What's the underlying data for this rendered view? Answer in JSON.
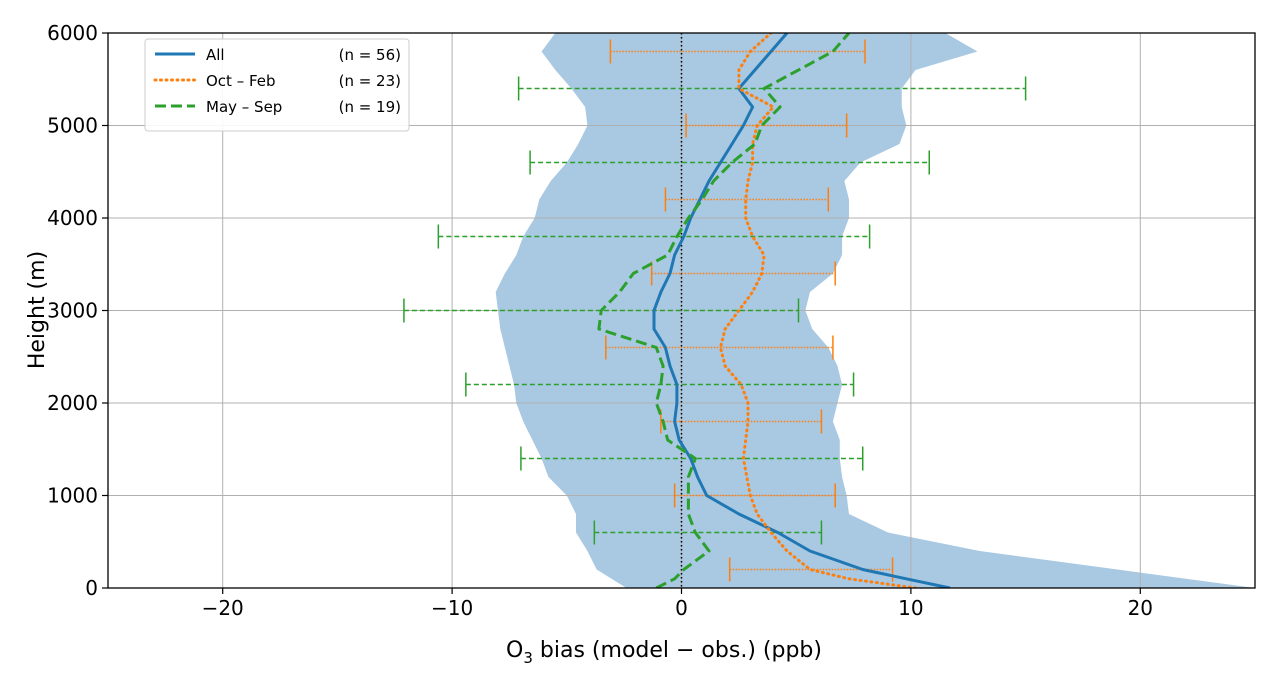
{
  "chart_data": {
    "type": "line",
    "xlabel": {
      "prefix": "O",
      "subscript": "3",
      "suffix": " bias (model − obs.) (ppb)"
    },
    "ylabel": "Height (m)",
    "xlim": [
      -25,
      25
    ],
    "ylim": [
      0,
      6000
    ],
    "x_ticks": [
      -20,
      -10,
      0,
      10,
      20
    ],
    "x_tick_labels": [
      "−20",
      "−10",
      "0",
      "10",
      "20"
    ],
    "y_ticks": [
      0,
      1000,
      2000,
      3000,
      4000,
      5000,
      6000
    ],
    "y_tick_labels": [
      "0",
      "1000",
      "2000",
      "3000",
      "4000",
      "5000",
      "6000"
    ],
    "grid": true,
    "zero_reference_line": {
      "x": 0,
      "style": "dotted",
      "color": "#000000"
    },
    "legend": {
      "position": "upper-left",
      "entries": [
        {
          "label": "All",
          "count": "(n = 56)"
        },
        {
          "label": "Oct – Feb",
          "count": "(n = 23)"
        },
        {
          "label": "May – Sep",
          "count": "(n = 19)"
        }
      ]
    },
    "shaded_band": {
      "series": "All",
      "color": "#a9c8e2",
      "upper": [
        [
          0,
          25
        ],
        [
          200,
          19
        ],
        [
          400,
          13
        ],
        [
          600,
          9
        ],
        [
          800,
          7.3
        ],
        [
          1000,
          7.2
        ],
        [
          1200,
          7
        ],
        [
          1400,
          6.9
        ],
        [
          1600,
          6.9
        ],
        [
          1800,
          6.6
        ],
        [
          2000,
          6.8
        ],
        [
          2200,
          7
        ],
        [
          2400,
          6.8
        ],
        [
          2600,
          6.4
        ],
        [
          2800,
          5.7
        ],
        [
          3000,
          5.4
        ],
        [
          3200,
          5.6
        ],
        [
          3400,
          6.6
        ],
        [
          3600,
          7
        ],
        [
          3800,
          7
        ],
        [
          4000,
          7.3
        ],
        [
          4200,
          7.3
        ],
        [
          4400,
          7.1
        ],
        [
          4600,
          7.8
        ],
        [
          4800,
          9.5
        ],
        [
          5000,
          9.8
        ],
        [
          5200,
          9.6
        ],
        [
          5400,
          9.6
        ],
        [
          5600,
          10.2
        ],
        [
          5800,
          12.9
        ],
        [
          6000,
          11.5
        ]
      ],
      "lower": [
        [
          0,
          -2.4
        ],
        [
          200,
          -3.7
        ],
        [
          400,
          -4.1
        ],
        [
          600,
          -4.6
        ],
        [
          800,
          -4.6
        ],
        [
          1000,
          -5
        ],
        [
          1200,
          -5.8
        ],
        [
          1400,
          -6.1
        ],
        [
          1600,
          -6.5
        ],
        [
          1800,
          -6.9
        ],
        [
          2000,
          -7.2
        ],
        [
          2200,
          -7.3
        ],
        [
          2400,
          -7.5
        ],
        [
          2600,
          -7.7
        ],
        [
          2800,
          -7.9
        ],
        [
          3000,
          -8
        ],
        [
          3200,
          -8.1
        ],
        [
          3400,
          -7.7
        ],
        [
          3600,
          -7.2
        ],
        [
          3800,
          -6.9
        ],
        [
          4000,
          -6.4
        ],
        [
          4200,
          -6.2
        ],
        [
          4400,
          -5.7
        ],
        [
          4600,
          -5
        ],
        [
          4800,
          -4.5
        ],
        [
          5000,
          -4.1
        ],
        [
          5200,
          -4.2
        ],
        [
          5400,
          -4.8
        ],
        [
          5600,
          -5.5
        ],
        [
          5800,
          -6.1
        ],
        [
          6000,
          -5.5
        ]
      ]
    },
    "series": [
      {
        "name": "All",
        "color": "#1f77b4",
        "style": "solid",
        "points": [
          [
            11.7,
            0
          ],
          [
            9.8,
            100
          ],
          [
            7.9,
            200
          ],
          [
            5.6,
            400
          ],
          [
            4.2,
            600
          ],
          [
            2.5,
            800
          ],
          [
            1.1,
            1000
          ],
          [
            0.7,
            1200
          ],
          [
            0.4,
            1400
          ],
          [
            -0.1,
            1600
          ],
          [
            -0.3,
            1800
          ],
          [
            -0.2,
            2000
          ],
          [
            -0.2,
            2200
          ],
          [
            -0.5,
            2400
          ],
          [
            -0.7,
            2600
          ],
          [
            -1.2,
            2800
          ],
          [
            -1.2,
            3000
          ],
          [
            -0.9,
            3200
          ],
          [
            -0.5,
            3400
          ],
          [
            -0.3,
            3600
          ],
          [
            0.1,
            3800
          ],
          [
            0.4,
            4000
          ],
          [
            0.8,
            4200
          ],
          [
            1.2,
            4400
          ],
          [
            1.7,
            4600
          ],
          [
            2.2,
            4800
          ],
          [
            2.7,
            5000
          ],
          [
            3.1,
            5200
          ],
          [
            2.5,
            5400
          ],
          [
            3.2,
            5600
          ],
          [
            3.9,
            5800
          ],
          [
            4.6,
            6000
          ]
        ]
      },
      {
        "name": "Oct – Feb",
        "color": "#ff7f0e",
        "style": "dotted",
        "points": [
          [
            10.2,
            0
          ],
          [
            7.3,
            100
          ],
          [
            5.6,
            200
          ],
          [
            4.6,
            400
          ],
          [
            3.9,
            600
          ],
          [
            3.3,
            800
          ],
          [
            3.0,
            1000
          ],
          [
            2.7,
            1400
          ],
          [
            2.9,
            1800
          ],
          [
            2.9,
            2000
          ],
          [
            2.6,
            2200
          ],
          [
            1.9,
            2400
          ],
          [
            1.7,
            2600
          ],
          [
            1.9,
            2800
          ],
          [
            2.5,
            3000
          ],
          [
            3.1,
            3200
          ],
          [
            3.5,
            3400
          ],
          [
            3.6,
            3600
          ],
          [
            3.1,
            3800
          ],
          [
            2.8,
            4000
          ],
          [
            2.8,
            4200
          ],
          [
            2.9,
            4400
          ],
          [
            3.1,
            4600
          ],
          [
            3.1,
            4800
          ],
          [
            3.3,
            5000
          ],
          [
            4.0,
            5200
          ],
          [
            2.5,
            5400
          ],
          [
            2.5,
            5600
          ],
          [
            3.0,
            5800
          ],
          [
            3.9,
            6000
          ]
        ]
      },
      {
        "name": "May – Sep",
        "color": "#2ca02c",
        "style": "dashed",
        "points": [
          [
            -1.1,
            0
          ],
          [
            -0.3,
            100
          ],
          [
            0.1,
            200
          ],
          [
            1.2,
            400
          ],
          [
            0.6,
            600
          ],
          [
            0.3,
            800
          ],
          [
            0.3,
            1000
          ],
          [
            0.3,
            1200
          ],
          [
            0.6,
            1400
          ],
          [
            -0.6,
            1600
          ],
          [
            -0.8,
            1800
          ],
          [
            -1.1,
            2000
          ],
          [
            -0.9,
            2200
          ],
          [
            -0.8,
            2400
          ],
          [
            -1.1,
            2600
          ],
          [
            -3.6,
            2800
          ],
          [
            -3.5,
            3000
          ],
          [
            -2.7,
            3200
          ],
          [
            -2.1,
            3400
          ],
          [
            -0.6,
            3600
          ],
          [
            -0.2,
            3800
          ],
          [
            0.3,
            4000
          ],
          [
            0.9,
            4200
          ],
          [
            1.4,
            4400
          ],
          [
            2.2,
            4600
          ],
          [
            3.2,
            4800
          ],
          [
            3.5,
            5000
          ],
          [
            4.3,
            5200
          ],
          [
            3.6,
            5400
          ],
          [
            6.6,
            5800
          ],
          [
            7.3,
            6000
          ]
        ]
      }
    ],
    "error_bars": [
      {
        "series": "Oct – Feb",
        "y": 200,
        "xmin": 2.1,
        "xmax": 9.2
      },
      {
        "series": "Oct – Feb",
        "y": 1000,
        "xmin": -0.3,
        "xmax": 6.7
      },
      {
        "series": "Oct – Feb",
        "y": 1800,
        "xmin": -0.9,
        "xmax": 6.1
      },
      {
        "series": "Oct – Feb",
        "y": 2600,
        "xmin": -3.3,
        "xmax": 6.6
      },
      {
        "series": "Oct – Feb",
        "y": 3400,
        "xmin": -1.3,
        "xmax": 6.7
      },
      {
        "series": "Oct – Feb",
        "y": 4200,
        "xmin": -0.7,
        "xmax": 6.4
      },
      {
        "series": "Oct – Feb",
        "y": 5000,
        "xmin": 0.2,
        "xmax": 7.2
      },
      {
        "series": "Oct – Feb",
        "y": 5800,
        "xmin": -3.1,
        "xmax": 8.0
      },
      {
        "series": "May – Sep",
        "y": 600,
        "xmin": -3.8,
        "xmax": 6.1
      },
      {
        "series": "May – Sep",
        "y": 1400,
        "xmin": -7.0,
        "xmax": 7.9
      },
      {
        "series": "May – Sep",
        "y": 2200,
        "xmin": -9.4,
        "xmax": 7.5
      },
      {
        "series": "May – Sep",
        "y": 3000,
        "xmin": -12.1,
        "xmax": 5.1
      },
      {
        "series": "May – Sep",
        "y": 3800,
        "xmin": -10.6,
        "xmax": 8.2
      },
      {
        "series": "May – Sep",
        "y": 4600,
        "xmin": -6.6,
        "xmax": 10.8
      },
      {
        "series": "May – Sep",
        "y": 5400,
        "xmin": -7.1,
        "xmax": 15.0
      }
    ]
  }
}
